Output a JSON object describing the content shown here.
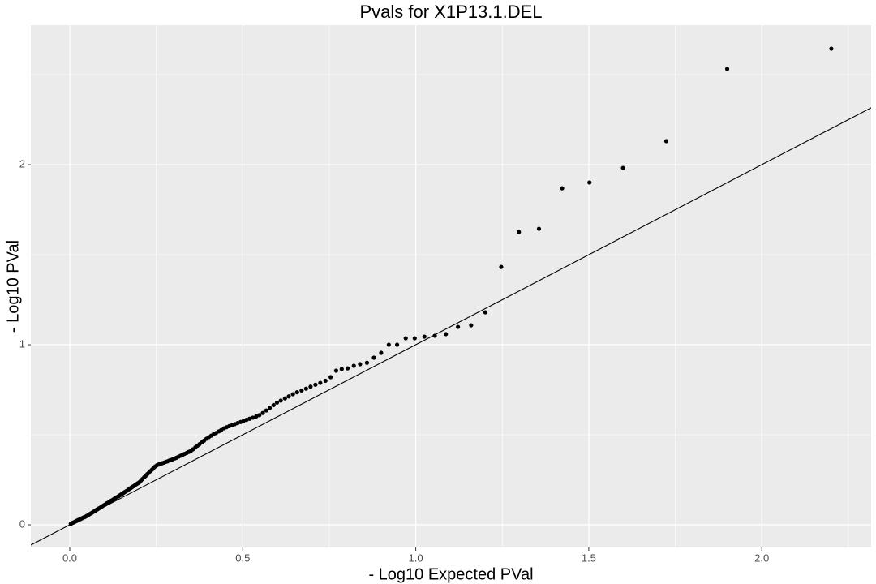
{
  "chart_data": {
    "type": "scatter",
    "title": "Pvals for X1P13.1.DEL",
    "x_label": "- Log10 Expected PVal",
    "y_label": "- Log10 PVal",
    "color": "#000000",
    "panel_color": "#ebebeb",
    "grid_color": "#ffffff",
    "grid": true,
    "reference_line": {
      "slope": 1,
      "intercept": 0,
      "color": "#000000"
    },
    "xlim": [
      -0.1125,
      2.316
    ],
    "ylim": [
      -0.126,
      2.775
    ],
    "xticks": [
      {
        "value": 0,
        "label": "0.0"
      },
      0.5,
      {
        "value": 1,
        "label": "1.0"
      },
      1.5,
      {
        "value": 2,
        "label": "2.0"
      }
    ],
    "yticks": [
      0,
      1,
      2
    ],
    "x": [
      2.201,
      1.9,
      1.724,
      1.599,
      1.502,
      1.423,
      1.356,
      1.298,
      1.247,
      1.201,
      1.16,
      1.122,
      1.087,
      1.055,
      1.025,
      0.997,
      0.971,
      0.946,
      0.922,
      0.9,
      0.879,
      0.859,
      0.839,
      0.821,
      0.803,
      0.786,
      0.77,
      0.754,
      0.739,
      0.724,
      0.71,
      0.696,
      0.683,
      0.67,
      0.657,
      0.645,
      0.633,
      0.622,
      0.61,
      0.599,
      0.589,
      0.578,
      0.568,
      0.558,
      0.548,
      0.539,
      0.529,
      0.52,
      0.511,
      0.502,
      0.494,
      0.485,
      0.477,
      0.469,
      0.461,
      0.453,
      0.446,
      0.438,
      0.431,
      0.423,
      0.416,
      0.409,
      0.402,
      0.395,
      0.388,
      0.382,
      0.375,
      0.369,
      0.363,
      0.356,
      0.35,
      0.344,
      0.338,
      0.332,
      0.326,
      0.321,
      0.315,
      0.309,
      0.304,
      0.298,
      0.293,
      0.288,
      0.282,
      0.277,
      0.272,
      0.267,
      0.262,
      0.257,
      0.252,
      0.247,
      0.242,
      0.238,
      0.233,
      0.228,
      0.224,
      0.219,
      0.215,
      0.21,
      0.206,
      0.201,
      0.197,
      0.193,
      0.189,
      0.184,
      0.18,
      0.176,
      0.172,
      0.168,
      0.164,
      0.16,
      0.156,
      0.152,
      0.148,
      0.145,
      0.141,
      0.137,
      0.133,
      0.13,
      0.126,
      0.122,
      0.119,
      0.115,
      0.112,
      0.108,
      0.105,
      0.101,
      0.098,
      0.094,
      0.091,
      0.087,
      0.084,
      0.081,
      0.078,
      0.074,
      0.071,
      0.068,
      0.065,
      0.062,
      0.058,
      0.055,
      0.052,
      0.049,
      0.046,
      0.043,
      0.04,
      0.037,
      0.034,
      0.031,
      0.028,
      0.025,
      0.022,
      0.02,
      0.017,
      0.014,
      0.011,
      0.008,
      0.005,
      0.003
    ],
    "values": [
      2.644,
      2.532,
      2.131,
      1.982,
      1.901,
      1.869,
      1.644,
      1.626,
      1.432,
      1.18,
      1.108,
      1.099,
      1.059,
      1.05,
      1.045,
      1.036,
      1.036,
      1.0,
      1.0,
      0.955,
      0.928,
      0.9,
      0.892,
      0.883,
      0.869,
      0.865,
      0.856,
      0.82,
      0.8,
      0.788,
      0.778,
      0.767,
      0.756,
      0.746,
      0.736,
      0.725,
      0.713,
      0.702,
      0.69,
      0.679,
      0.665,
      0.649,
      0.635,
      0.621,
      0.609,
      0.602,
      0.595,
      0.589,
      0.583,
      0.576,
      0.571,
      0.565,
      0.559,
      0.553,
      0.548,
      0.542,
      0.536,
      0.527,
      0.519,
      0.51,
      0.503,
      0.495,
      0.487,
      0.478,
      0.467,
      0.458,
      0.448,
      0.439,
      0.43,
      0.419,
      0.41,
      0.405,
      0.399,
      0.394,
      0.388,
      0.384,
      0.379,
      0.373,
      0.369,
      0.364,
      0.36,
      0.357,
      0.352,
      0.349,
      0.345,
      0.342,
      0.338,
      0.335,
      0.331,
      0.324,
      0.315,
      0.307,
      0.298,
      0.288,
      0.281,
      0.271,
      0.264,
      0.254,
      0.246,
      0.236,
      0.231,
      0.226,
      0.221,
      0.214,
      0.209,
      0.204,
      0.199,
      0.193,
      0.188,
      0.183,
      0.178,
      0.173,
      0.168,
      0.164,
      0.159,
      0.154,
      0.15,
      0.146,
      0.141,
      0.136,
      0.133,
      0.128,
      0.124,
      0.12,
      0.116,
      0.111,
      0.108,
      0.103,
      0.099,
      0.094,
      0.091,
      0.087,
      0.084,
      0.079,
      0.075,
      0.072,
      0.068,
      0.064,
      0.06,
      0.056,
      0.052,
      0.049,
      0.046,
      0.043,
      0.041,
      0.038,
      0.035,
      0.032,
      0.029,
      0.027,
      0.024,
      0.022,
      0.019,
      0.016,
      0.013,
      0.011,
      0.008,
      0.006
    ]
  }
}
